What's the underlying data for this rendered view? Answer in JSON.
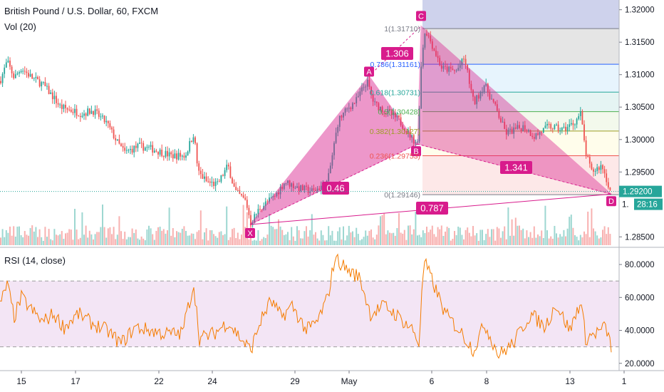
{
  "header": {
    "title": "British Pound / U.S. Dollar, 60, FXCM",
    "volume_label": "Vol (20)",
    "rsi_label": "RSI (14, close)"
  },
  "price_axis": {
    "ticks": [
      "1.32000",
      "1.31500",
      "1.31000",
      "1.30500",
      "1.30000",
      "1.29500",
      "1.28500"
    ],
    "current_price": "1.29200",
    "countdown": "28:16",
    "partial_label": "1."
  },
  "rsi_axis": {
    "ticks": [
      "80.0000",
      "60.0000",
      "40.0000",
      "20.0000"
    ]
  },
  "time_axis": {
    "ticks": [
      "15",
      "17",
      "22",
      "24",
      "29",
      "May",
      "6",
      "8",
      "13",
      "1"
    ]
  },
  "pattern": {
    "points": [
      {
        "label": "X",
        "price": 1.2869
      },
      {
        "label": "A",
        "price": 1.3098
      },
      {
        "label": "B",
        "price": 1.2993
      },
      {
        "label": "C",
        "price": 1.3175
      },
      {
        "label": "D",
        "price": 1.2916
      }
    ],
    "ratios": [
      "1.306",
      "0.46",
      "1.341",
      "0.787"
    ]
  },
  "fib_levels": [
    {
      "label": "1(1.31710)",
      "price": 1.3171
    },
    {
      "label": "0.786(1.31161)",
      "price": 1.3116
    },
    {
      "label": "0.618(1.30731)",
      "price": 1.3073
    },
    {
      "label": "0.5(1.30428)",
      "price": 1.3043
    },
    {
      "label": "0.382(1.30127)",
      "price": 1.3013
    },
    {
      "label": "0.236(1.29753)",
      "price": 1.2975
    },
    {
      "label": "0(1.29146)",
      "price": 1.2915
    }
  ],
  "colors": {
    "up": "#26a69a",
    "down": "#ef5350",
    "pattern_fill": "#d81b8c",
    "rsi_line": "#f57c00",
    "rsi_band": "#e1bee7",
    "price_tag": "#26a69a"
  },
  "chart_data": {
    "type": "candlestick",
    "symbol": "British Pound / U.S. Dollar, 60, FXCM",
    "ylim": [
      1.2835,
      1.3215
    ],
    "rsi_ylim": [
      16,
      90
    ],
    "rsi_bands": [
      30,
      70
    ],
    "anchors": [
      [
        0,
        1.309
      ],
      [
        10,
        1.312
      ],
      [
        20,
        1.3095
      ],
      [
        30,
        1.311
      ],
      [
        45,
        1.3095
      ],
      [
        60,
        1.3085
      ],
      [
        75,
        1.3065
      ],
      [
        85,
        1.305
      ],
      [
        100,
        1.3045
      ],
      [
        115,
        1.304
      ],
      [
        130,
        1.3045
      ],
      [
        150,
        1.3025
      ],
      [
        165,
        1.2995
      ],
      [
        175,
        1.298
      ],
      [
        195,
        1.299
      ],
      [
        215,
        1.2985
      ],
      [
        240,
        1.2975
      ],
      [
        260,
        1.2975
      ],
      [
        272,
        1.301
      ],
      [
        278,
        1.295
      ],
      [
        290,
        1.2935
      ],
      [
        305,
        1.293
      ],
      [
        320,
        1.296
      ],
      [
        330,
        1.292
      ],
      [
        345,
        1.2905
      ],
      [
        352,
        1.2872
      ],
      [
        365,
        1.2895
      ],
      [
        385,
        1.2912
      ],
      [
        400,
        1.2935
      ],
      [
        420,
        1.2925
      ],
      [
        440,
        1.292
      ],
      [
        460,
        1.2935
      ],
      [
        475,
        1.303
      ],
      [
        490,
        1.305
      ],
      [
        500,
        1.306
      ],
      [
        515,
        1.309
      ],
      [
        525,
        1.3055
      ],
      [
        540,
        1.3045
      ],
      [
        560,
        1.303
      ],
      [
        580,
        1.3
      ],
      [
        586,
        1.2995
      ],
      [
        592,
        1.313
      ],
      [
        597,
        1.317
      ],
      [
        605,
        1.315
      ],
      [
        620,
        1.311
      ],
      [
        640,
        1.3105
      ],
      [
        652,
        1.3125
      ],
      [
        665,
        1.3055
      ],
      [
        680,
        1.3085
      ],
      [
        695,
        1.305
      ],
      [
        710,
        1.301
      ],
      [
        735,
        1.302
      ],
      [
        750,
        1.3005
      ],
      [
        770,
        1.302
      ],
      [
        790,
        1.3015
      ],
      [
        805,
        1.3025
      ],
      [
        815,
        1.304
      ],
      [
        822,
        1.298
      ],
      [
        830,
        1.295
      ],
      [
        845,
        1.296
      ],
      [
        858,
        1.2916
      ]
    ],
    "rsi_anchors": [
      [
        0,
        55
      ],
      [
        10,
        68
      ],
      [
        20,
        48
      ],
      [
        30,
        60
      ],
      [
        45,
        52
      ],
      [
        60,
        45
      ],
      [
        75,
        50
      ],
      [
        90,
        42
      ],
      [
        110,
        50
      ],
      [
        130,
        44
      ],
      [
        150,
        40
      ],
      [
        170,
        32
      ],
      [
        190,
        42
      ],
      [
        210,
        40
      ],
      [
        230,
        38
      ],
      [
        255,
        38
      ],
      [
        272,
        68
      ],
      [
        280,
        35
      ],
      [
        300,
        38
      ],
      [
        320,
        45
      ],
      [
        340,
        34
      ],
      [
        352,
        28
      ],
      [
        365,
        45
      ],
      [
        380,
        58
      ],
      [
        395,
        48
      ],
      [
        410,
        55
      ],
      [
        430,
        40
      ],
      [
        445,
        45
      ],
      [
        460,
        60
      ],
      [
        470,
        84
      ],
      [
        480,
        80
      ],
      [
        490,
        76
      ],
      [
        505,
        72
      ],
      [
        520,
        50
      ],
      [
        540,
        55
      ],
      [
        560,
        48
      ],
      [
        580,
        40
      ],
      [
        588,
        32
      ],
      [
        595,
        82
      ],
      [
        605,
        72
      ],
      [
        625,
        50
      ],
      [
        645,
        40
      ],
      [
        665,
        28
      ],
      [
        680,
        44
      ],
      [
        700,
        25
      ],
      [
        720,
        32
      ],
      [
        745,
        50
      ],
      [
        765,
        42
      ],
      [
        780,
        56
      ],
      [
        800,
        40
      ],
      [
        815,
        58
      ],
      [
        822,
        35
      ],
      [
        835,
        38
      ],
      [
        850,
        42
      ],
      [
        858,
        30
      ]
    ]
  }
}
